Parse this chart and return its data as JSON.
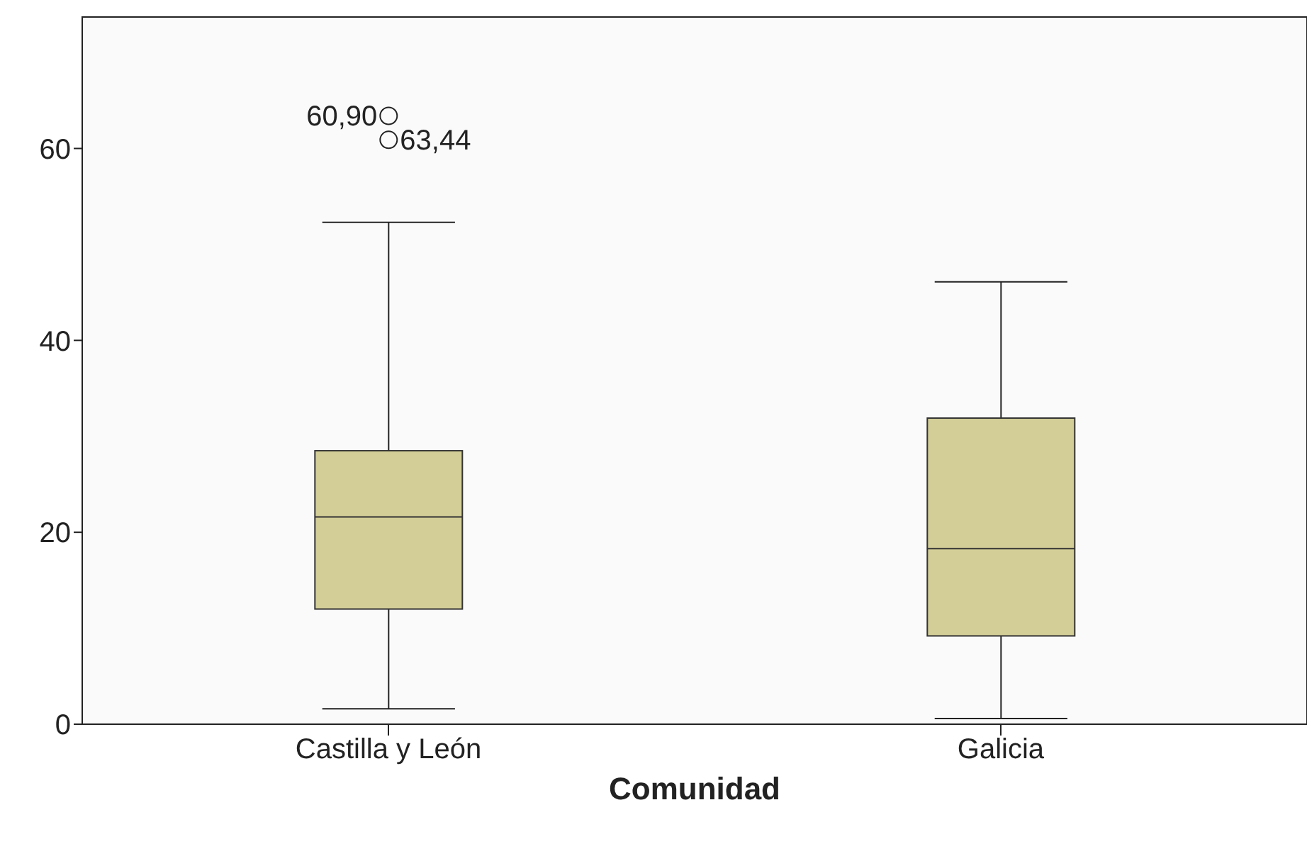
{
  "chart_data": {
    "type": "box",
    "xlabel": "Comunidad",
    "categories": [
      "Castilla y León",
      "Galicia"
    ],
    "color": "#d3ce97",
    "boxes": [
      {
        "low": 1.6,
        "q1": 12.0,
        "median": 21.6,
        "q3": 28.5,
        "high": 52.3,
        "outliers": [
          63.4,
          60.9
        ]
      },
      {
        "low": 0.6,
        "q1": 9.2,
        "median": 18.3,
        "q3": 31.9,
        "high": 46.1
      }
    ],
    "ylim": [
      0,
      73.7
    ],
    "yticks": [
      0,
      20,
      40,
      60
    ],
    "annotations": [
      "60,90",
      "63,44"
    ]
  }
}
